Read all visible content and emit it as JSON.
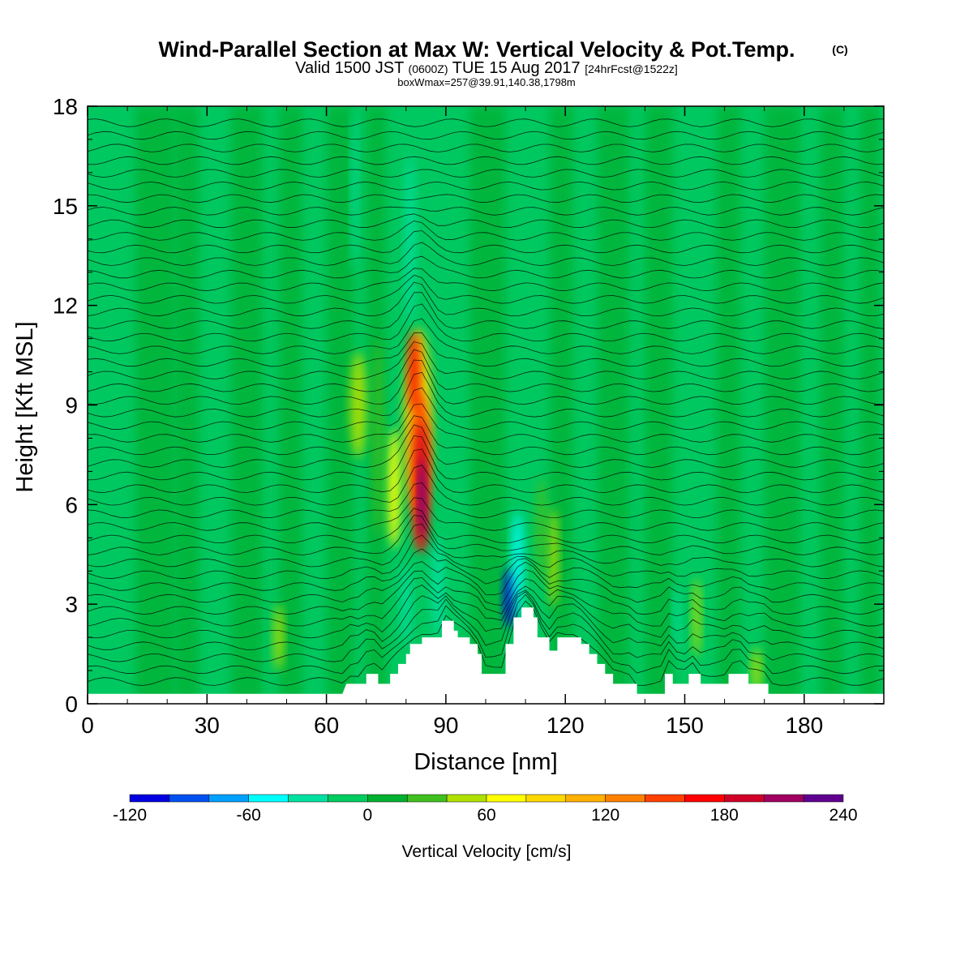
{
  "chart_data": {
    "type": "heatmap",
    "title": "Wind-Parallel Section at Max W: Vertical Velocity & Pot.Temp.",
    "title_mark": "(C)",
    "subtitle_parts": {
      "part1": "Valid 1500 JST",
      "part2": "(0600Z)",
      "part3": "TUE 15 Aug 2017",
      "part4": "[24hrFcst@1522z]"
    },
    "subtitle2": "boxWmax=257@39.91,140.38,1798m",
    "xlabel": "Distance [nm]",
    "ylabel": "Height [Kft MSL]",
    "xlim": [
      0,
      200
    ],
    "ylim": [
      0,
      18
    ],
    "xticks": [
      "0",
      "30",
      "60",
      "90",
      "120",
      "150",
      "180"
    ],
    "yticks": [
      "0",
      "3",
      "6",
      "9",
      "12",
      "15",
      "18"
    ],
    "xtick_values": [
      0,
      30,
      60,
      90,
      120,
      150,
      180
    ],
    "ytick_values": [
      0,
      3,
      6,
      9,
      12,
      15,
      18
    ],
    "background_value_cms": 0,
    "updraft_max_cms": 257,
    "updraft_core": {
      "x_nm": 83,
      "y_kft": 6.5
    },
    "downdraft_core": {
      "x_nm": 106,
      "y_kft": 3.0
    },
    "terrain_profile_kft": [
      [
        0,
        0.3
      ],
      [
        10,
        0.3
      ],
      [
        64,
        0.3
      ],
      [
        65,
        0.6
      ],
      [
        70,
        0.6
      ],
      [
        70,
        0.9
      ],
      [
        73,
        0.9
      ],
      [
        73,
        0.6
      ],
      [
        76,
        0.6
      ],
      [
        76,
        0.9
      ],
      [
        78,
        0.9
      ],
      [
        78,
        1.2
      ],
      [
        80,
        1.2
      ],
      [
        80,
        1.5
      ],
      [
        81,
        1.5
      ],
      [
        81,
        1.8
      ],
      [
        84,
        1.8
      ],
      [
        84,
        2.0
      ],
      [
        89,
        2.0
      ],
      [
        89,
        2.5
      ],
      [
        92,
        2.5
      ],
      [
        92,
        2.2
      ],
      [
        93,
        2.2
      ],
      [
        93,
        2.0
      ],
      [
        96,
        2.0
      ],
      [
        96,
        1.8
      ],
      [
        98,
        1.8
      ],
      [
        98,
        1.5
      ],
      [
        99,
        1.5
      ],
      [
        99,
        0.9
      ],
      [
        105,
        0.9
      ],
      [
        105,
        1.8
      ],
      [
        107,
        1.8
      ],
      [
        107,
        2.6
      ],
      [
        109,
        2.6
      ],
      [
        109,
        2.9
      ],
      [
        112,
        2.9
      ],
      [
        112,
        2.6
      ],
      [
        113,
        2.6
      ],
      [
        113,
        2.0
      ],
      [
        116,
        2.0
      ],
      [
        116,
        1.6
      ],
      [
        118,
        1.6
      ],
      [
        118,
        2.0
      ],
      [
        124,
        2.0
      ],
      [
        124,
        1.8
      ],
      [
        126,
        1.8
      ],
      [
        126,
        1.5
      ],
      [
        128,
        1.5
      ],
      [
        128,
        1.2
      ],
      [
        130,
        1.2
      ],
      [
        130,
        0.9
      ],
      [
        132,
        0.9
      ],
      [
        132,
        0.6
      ],
      [
        138,
        0.6
      ],
      [
        138,
        0.3
      ],
      [
        145,
        0.3
      ],
      [
        145,
        0.9
      ],
      [
        147,
        0.9
      ],
      [
        147,
        0.6
      ],
      [
        151,
        0.6
      ],
      [
        151,
        0.9
      ],
      [
        154,
        0.9
      ],
      [
        154,
        0.6
      ],
      [
        161,
        0.6
      ],
      [
        161,
        0.9
      ],
      [
        166,
        0.9
      ],
      [
        166,
        0.6
      ],
      [
        171,
        0.6
      ],
      [
        171,
        0.3
      ],
      [
        200,
        0.3
      ]
    ],
    "colorbar": {
      "label": "Vertical Velocity [cm/s]",
      "min": -120,
      "step": 20,
      "colors": [
        "#0000e0",
        "#0050f0",
        "#00a0ff",
        "#00ffff",
        "#00e0a0",
        "#00cc60",
        "#00b030",
        "#40c020",
        "#b0e000",
        "#ffff00",
        "#ffd800",
        "#ffb000",
        "#ff8000",
        "#ff4000",
        "#ff0000",
        "#d00028",
        "#a00060",
        "#600090"
      ],
      "tick_labels": [
        "-120",
        "-60",
        "0",
        "60",
        "120",
        "180",
        "240"
      ],
      "tick_values": [
        -120,
        -60,
        0,
        60,
        120,
        180,
        240
      ]
    }
  }
}
